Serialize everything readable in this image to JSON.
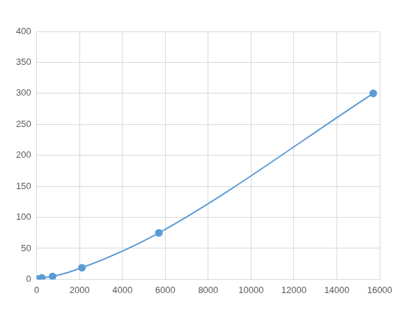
{
  "chart_data": {
    "type": "line",
    "x": [
      60,
      240,
      740,
      2110,
      5700,
      15700
    ],
    "values": [
      0.6,
      2.3,
      4.7,
      18.8,
      75,
      300
    ],
    "color": "#5b9bd5",
    "marker": "circle",
    "xlim": [
      0,
      16000
    ],
    "xticks": [
      0,
      2000,
      4000,
      6000,
      8000,
      10000,
      12000,
      14000,
      16000
    ],
    "ylim": [
      0,
      400
    ],
    "yticks": [
      0,
      50,
      100,
      150,
      200,
      250,
      300,
      350,
      400
    ],
    "grid": true
  }
}
